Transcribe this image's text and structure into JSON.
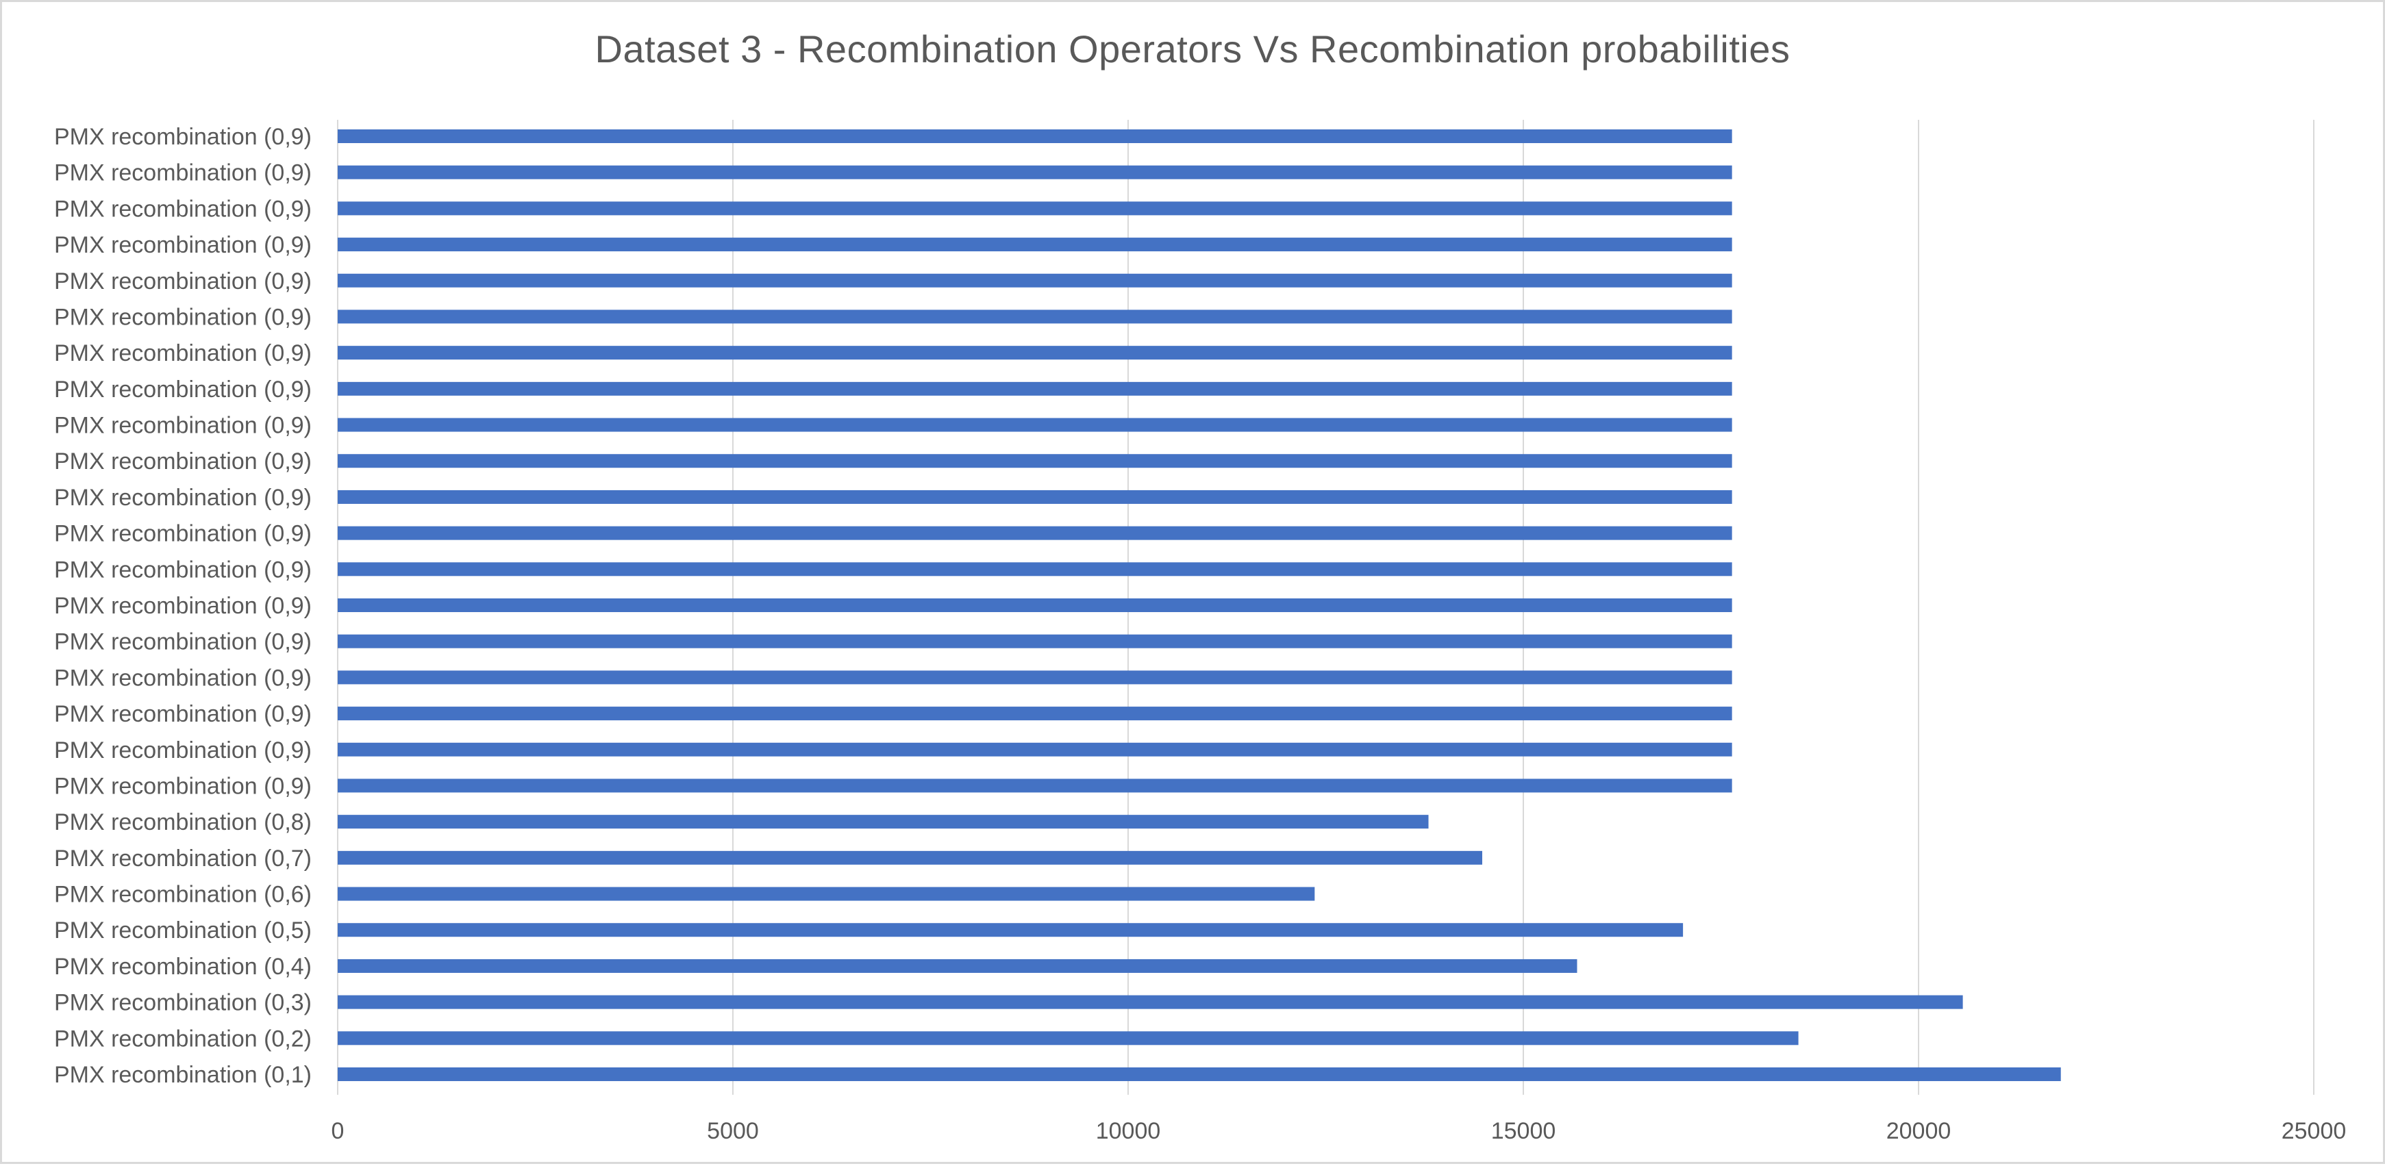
{
  "chart_data": {
    "type": "bar",
    "orientation": "horizontal",
    "title": "Dataset 3 - Recombination Operators Vs Recombination probabilities",
    "xlabel": "",
    "ylabel": "",
    "xlim": [
      0,
      25000
    ],
    "x_ticks": [
      "0",
      "5000",
      "10000",
      "15000",
      "20000",
      "25000"
    ],
    "grid": "vertical",
    "legend": "none",
    "bar_color": "#4472c4",
    "categories": [
      "PMX recombination (0,1)",
      "PMX recombination (0,2)",
      "PMX recombination (0,3)",
      "PMX recombination (0,4)",
      "PMX recombination (0,5)",
      "PMX recombination (0,6)",
      "PMX recombination (0,7)",
      "PMX recombination (0,8)",
      "PMX recombination (0,9)",
      "PMX recombination (0,9)",
      "PMX recombination (0,9)",
      "PMX recombination (0,9)",
      "PMX recombination (0,9)",
      "PMX recombination (0,9)",
      "PMX recombination (0,9)",
      "PMX recombination (0,9)",
      "PMX recombination (0,9)",
      "PMX recombination (0,9)",
      "PMX recombination (0,9)",
      "PMX recombination (0,9)",
      "PMX recombination (0,9)",
      "PMX recombination (0,9)",
      "PMX recombination (0,9)",
      "PMX recombination (0,9)",
      "PMX recombination (0,9)",
      "PMX recombination (0,9)",
      "PMX recombination (0,9)"
    ],
    "values": [
      21800,
      18480,
      20560,
      15680,
      17020,
      12360,
      14480,
      13800,
      17640,
      17640,
      17640,
      17640,
      17640,
      17640,
      17640,
      17640,
      17640,
      17640,
      17640,
      17640,
      17640,
      17640,
      17640,
      17640,
      17640,
      17640,
      17640
    ]
  }
}
